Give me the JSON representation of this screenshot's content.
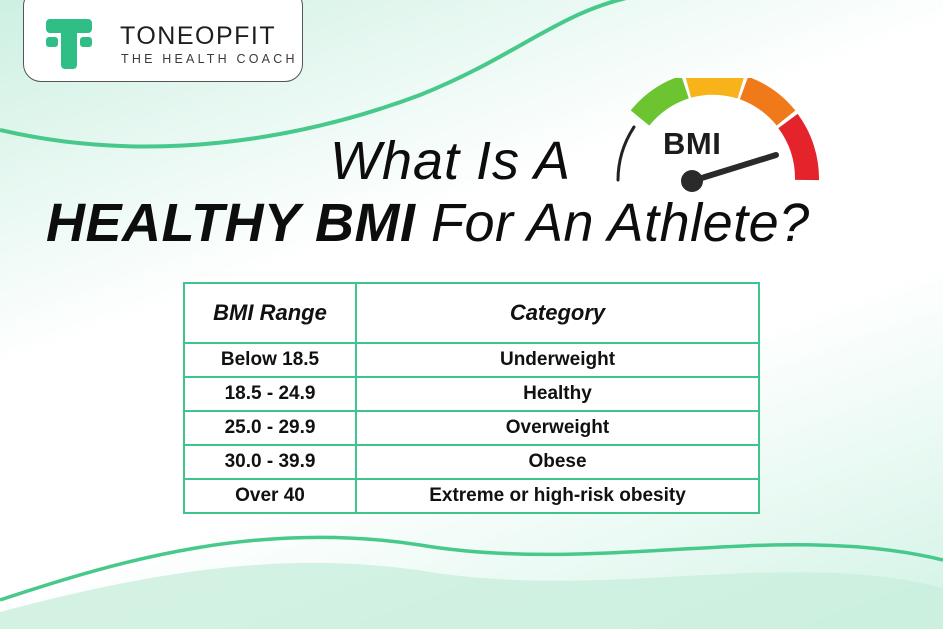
{
  "brand": {
    "name": "TONEOPFIT",
    "tagline": "THE HEALTH COACH",
    "accent_color": "#3ec48c",
    "icon": "toneopfit-logo-icon"
  },
  "title": {
    "line1": "What Is A",
    "line2_bold": "HEALTHY BMI",
    "line2_rest": " For An Athlete?"
  },
  "gauge": {
    "label": "BMI",
    "icon": "bmi-gauge-icon",
    "segment_colors": [
      "#6cc530",
      "#f8b21a",
      "#f07a1a",
      "#e4242a"
    ]
  },
  "table": {
    "headers": [
      "BMI Range",
      "Category"
    ],
    "rows": [
      [
        "Below 18.5",
        "Underweight"
      ],
      [
        "18.5 - 24.9",
        "Healthy"
      ],
      [
        "25.0 - 29.9",
        "Overweight"
      ],
      [
        "30.0 - 39.9",
        "Obese"
      ],
      [
        "Over 40",
        "Extreme or high-risk obesity"
      ]
    ]
  }
}
